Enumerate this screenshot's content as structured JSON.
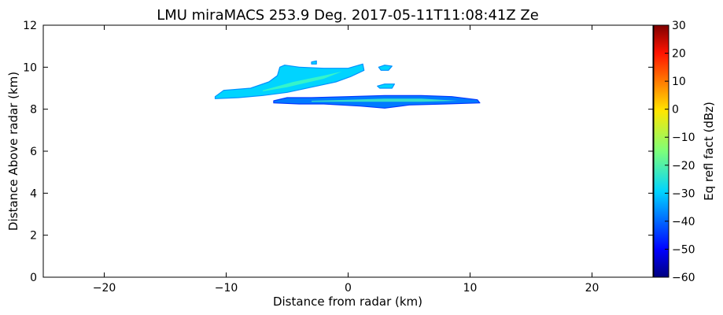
{
  "chart_data": {
    "type": "heatmap",
    "title": "LMU miraMACS 253.9 Deg. 2017-05-11T11:08:41Z  Ze",
    "xlabel": "Distance from radar (km)",
    "ylabel": "Distance Above radar  (km)",
    "xlim": [
      -25,
      25
    ],
    "ylim": [
      0,
      12
    ],
    "xticks": [
      -20,
      -10,
      0,
      10,
      20
    ],
    "yticks": [
      0,
      2,
      4,
      6,
      8,
      10,
      12
    ],
    "grid": false,
    "colorbar": {
      "label": "Eq refl fact (dBz)",
      "range": [
        -60,
        30
      ],
      "ticks": [
        -60,
        -50,
        -40,
        -30,
        -20,
        -10,
        0,
        10,
        20,
        30
      ],
      "colormap": "jet"
    },
    "features": [
      {
        "name": "upper cloud band",
        "outline": [
          [
            -10.9,
            8.6
          ],
          [
            -10.2,
            8.9
          ],
          [
            -8,
            9.0
          ],
          [
            -6.5,
            9.3
          ],
          [
            -5.8,
            9.6
          ],
          [
            -5.6,
            10.0
          ],
          [
            -5.2,
            10.1
          ],
          [
            -4,
            10.0
          ],
          [
            -2,
            9.95
          ],
          [
            0,
            9.95
          ],
          [
            1.2,
            10.15
          ],
          [
            1.3,
            9.85
          ],
          [
            0.2,
            9.55
          ],
          [
            -1,
            9.3
          ],
          [
            -3,
            9.05
          ],
          [
            -5,
            8.8
          ],
          [
            -7,
            8.65
          ],
          [
            -9,
            8.55
          ],
          [
            -10.9,
            8.5
          ]
        ],
        "core": [
          [
            -7,
            8.9
          ],
          [
            -4.5,
            9.3
          ],
          [
            -2,
            9.6
          ],
          [
            -0.5,
            9.8
          ],
          [
            -2,
            9.45
          ],
          [
            -5,
            9.05
          ],
          [
            -7,
            8.85
          ]
        ],
        "core_dbz": -20,
        "edge_dbz": -30
      },
      {
        "name": "lower cloud band",
        "outline": [
          [
            -6.1,
            8.4
          ],
          [
            -5,
            8.55
          ],
          [
            -3,
            8.55
          ],
          [
            0,
            8.6
          ],
          [
            3,
            8.65
          ],
          [
            6,
            8.65
          ],
          [
            8.5,
            8.6
          ],
          [
            10.6,
            8.45
          ],
          [
            10.8,
            8.3
          ],
          [
            8,
            8.25
          ],
          [
            5,
            8.2
          ],
          [
            3,
            8.05
          ],
          [
            1,
            8.15
          ],
          [
            -2,
            8.25
          ],
          [
            -4,
            8.25
          ],
          [
            -6.1,
            8.3
          ]
        ],
        "core": [
          [
            -3,
            8.4
          ],
          [
            0,
            8.45
          ],
          [
            3,
            8.5
          ],
          [
            6,
            8.5
          ],
          [
            9,
            8.4
          ],
          [
            6,
            8.35
          ],
          [
            3,
            8.35
          ],
          [
            0,
            8.35
          ],
          [
            -3,
            8.35
          ]
        ],
        "core_dbz": -20,
        "edge_dbz": -38
      },
      {
        "name": "small cell upper",
        "outline": [
          [
            2.5,
            10.0
          ],
          [
            3.0,
            10.1
          ],
          [
            3.6,
            10.05
          ],
          [
            3.3,
            9.85
          ],
          [
            2.7,
            9.85
          ]
        ],
        "core": [],
        "core_dbz": -30,
        "edge_dbz": -30
      },
      {
        "name": "small cell lower",
        "outline": [
          [
            2.4,
            9.1
          ],
          [
            3.0,
            9.2
          ],
          [
            3.8,
            9.2
          ],
          [
            3.6,
            9.0
          ],
          [
            2.6,
            9.0
          ]
        ],
        "core": [],
        "core_dbz": -30,
        "edge_dbz": -30
      },
      {
        "name": "isolated pixels",
        "outline": [
          [
            -3.0,
            10.25
          ],
          [
            -2.6,
            10.3
          ],
          [
            -2.6,
            10.15
          ],
          [
            -3.0,
            10.15
          ]
        ],
        "core": [],
        "core_dbz": -30,
        "edge_dbz": -30
      }
    ]
  }
}
